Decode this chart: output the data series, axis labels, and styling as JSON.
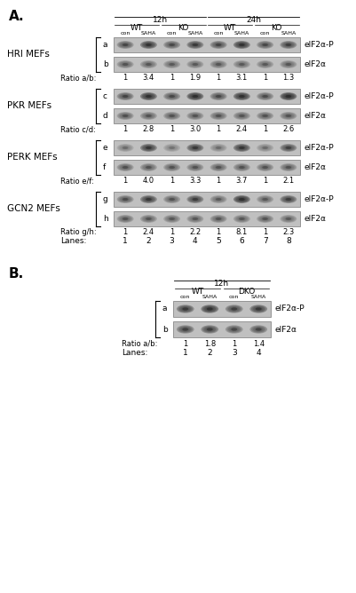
{
  "panel_A_label": "A.",
  "panel_B_label": "B.",
  "section_A": {
    "blot_groups": [
      {
        "name": "HRI MEFs",
        "row_a_label": "a",
        "row_b_label": "b",
        "ratio_label": "Ratio a/b:",
        "ratio_values": [
          "1",
          "3.4",
          "1",
          "1.9",
          "1",
          "3.1",
          "1",
          "1.3"
        ],
        "row_a_intensities": [
          0.52,
          0.75,
          0.5,
          0.65,
          0.55,
          0.78,
          0.5,
          0.6
        ],
        "row_b_intensities": [
          0.42,
          0.4,
          0.38,
          0.38,
          0.4,
          0.38,
          0.38,
          0.4
        ],
        "row_a_label_right": "eIF2α-P",
        "row_b_label_right": "eIF2α"
      },
      {
        "name": "PKR MEFs",
        "row_a_label": "c",
        "row_b_label": "d",
        "ratio_label": "Ratio c/d:",
        "ratio_values": [
          "1",
          "2.8",
          "1",
          "3.0",
          "1",
          "2.4",
          "1",
          "2.6"
        ],
        "row_a_intensities": [
          0.55,
          0.82,
          0.5,
          0.85,
          0.52,
          0.8,
          0.48,
          0.88
        ],
        "row_b_intensities": [
          0.45,
          0.43,
          0.43,
          0.42,
          0.44,
          0.42,
          0.43,
          0.43
        ],
        "row_a_label_right": "eIF2α-P",
        "row_b_label_right": "eIF2α"
      },
      {
        "name": "PERK MEFs",
        "row_a_label": "e",
        "row_b_label": "f",
        "ratio_label": "Ratio e/f:",
        "ratio_values": [
          "1",
          "4.0",
          "1",
          "3.3",
          "1",
          "3.7",
          "1",
          "2.1"
        ],
        "row_a_intensities": [
          0.28,
          0.72,
          0.25,
          0.68,
          0.28,
          0.72,
          0.28,
          0.58
        ],
        "row_b_intensities": [
          0.45,
          0.43,
          0.43,
          0.43,
          0.44,
          0.43,
          0.43,
          0.43
        ],
        "row_a_label_right": "eIF2α-P",
        "row_b_label_right": "eIF2α"
      },
      {
        "name": "GCN2 MEFs",
        "row_a_label": "g",
        "row_b_label": "h",
        "ratio_label": "Ratio g/h:",
        "ratio_values": [
          "1",
          "2.4",
          "1",
          "2.2",
          "1",
          "8.1",
          "1",
          "2.3"
        ],
        "row_a_intensities": [
          0.48,
          0.7,
          0.44,
          0.65,
          0.38,
          0.85,
          0.4,
          0.62
        ],
        "row_b_intensities": [
          0.43,
          0.42,
          0.4,
          0.4,
          0.42,
          0.4,
          0.42,
          0.38
        ],
        "row_a_label_right": "eIF2α-P",
        "row_b_label_right": "eIF2α"
      }
    ],
    "lanes_label": "Lanes:",
    "lane_numbers": [
      "1",
      "2",
      "3",
      "4",
      "5",
      "6",
      "7",
      "8"
    ]
  },
  "section_B": {
    "row_a_label": "a",
    "row_b_label": "b",
    "ratio_label": "Ratio a/b:",
    "ratio_values": [
      "1",
      "1.8",
      "1",
      "1.4"
    ],
    "row_a_intensities": [
      0.68,
      0.8,
      0.6,
      0.7
    ],
    "row_b_intensities": [
      0.58,
      0.62,
      0.52,
      0.55
    ],
    "row_a_label_right": "eIF2α-P",
    "row_b_label_right": "eIF2α",
    "lanes_label": "Lanes:",
    "lane_numbers": [
      "1",
      "2",
      "3",
      "4"
    ]
  }
}
